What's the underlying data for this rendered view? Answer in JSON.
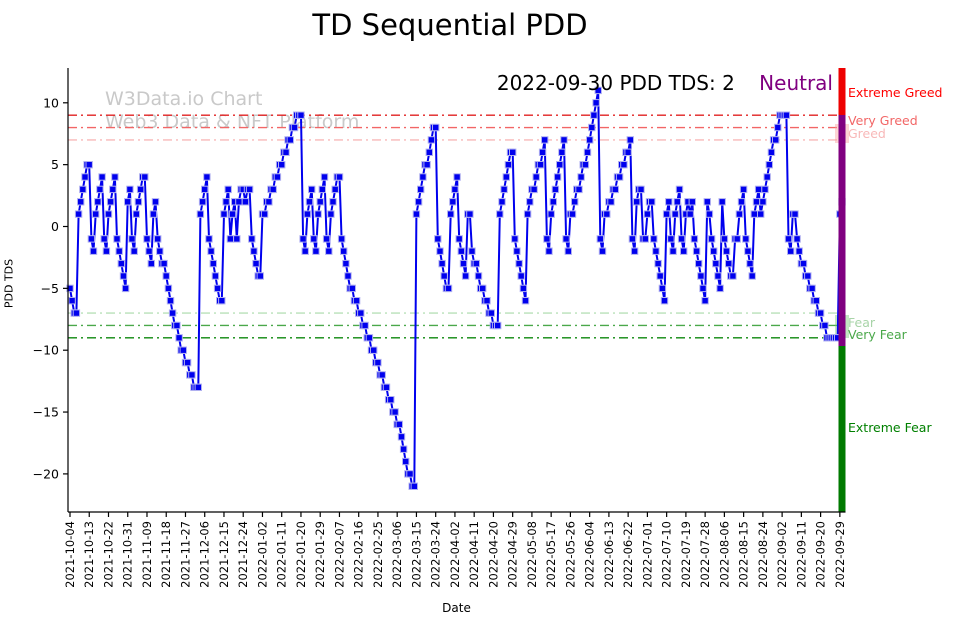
{
  "title": "TD Sequential PDD",
  "watermark": {
    "line1": "W3Data.io Chart",
    "line2": "Web3 Data & NFT Platform",
    "color": "#c9c9c9"
  },
  "annotation": {
    "text": "2022-09-30 PDD TDS: 2",
    "state": "Neutral",
    "state_color": "#800080"
  },
  "axes": {
    "xlabel": "Date",
    "ylabel": "PDD TDS"
  },
  "chart_data": {
    "type": "line",
    "title": "TD Sequential PDD",
    "xlabel": "Date",
    "ylabel": "PDD TDS",
    "series_name": "PDD TDS",
    "frequency": "daily",
    "start_date": "2021-10-04",
    "end_date": "2022-09-30",
    "last_value": 2,
    "ylim": [
      -23.5,
      13
    ],
    "y_ticks": [
      10,
      5,
      0,
      -5,
      -10,
      -15,
      -20
    ],
    "x_tick_every_days": 9,
    "x_tick_labels": [
      "2021-10-04",
      "2021-10-13",
      "2021-10-22",
      "2021-10-31",
      "2021-11-09",
      "2021-11-18",
      "2021-11-27",
      "2021-12-06",
      "2021-12-15",
      "2021-12-24",
      "2022-01-02",
      "2022-01-11",
      "2022-01-20",
      "2022-01-29",
      "2022-02-07",
      "2022-02-16",
      "2022-02-25",
      "2022-03-06",
      "2022-03-15",
      "2022-03-24",
      "2022-04-02",
      "2022-04-11",
      "2022-04-20",
      "2022-04-29",
      "2022-05-08",
      "2022-05-17",
      "2022-05-26",
      "2022-06-04",
      "2022-06-13",
      "2022-06-22",
      "2022-07-01",
      "2022-07-10",
      "2022-07-19",
      "2022-07-28",
      "2022-08-06",
      "2022-08-15",
      "2022-08-24",
      "2022-09-02",
      "2022-09-11",
      "2022-09-20",
      "2022-09-29"
    ],
    "line_color": "#0000ee",
    "marker": "square",
    "marker_edge_color": "#b0b0f0",
    "values": [
      -5,
      -6,
      -7,
      -7,
      1,
      2,
      3,
      4,
      5,
      5,
      -1,
      -2,
      1,
      2,
      3,
      4,
      -1,
      -2,
      1,
      2,
      3,
      4,
      -1,
      -2,
      -3,
      -4,
      -5,
      2,
      3,
      -1,
      -2,
      1,
      2,
      3,
      4,
      4,
      -1,
      -2,
      -3,
      1,
      2,
      -1,
      -2,
      -3,
      -3,
      -4,
      -5,
      -6,
      -7,
      -8,
      -8,
      -9,
      -10,
      -10,
      -11,
      -11,
      -12,
      -12,
      -13,
      -13,
      -13,
      1,
      2,
      3,
      4,
      -1,
      -2,
      -3,
      -4,
      -5,
      -6,
      -6,
      1,
      2,
      3,
      -1,
      1,
      2,
      -1,
      2,
      3,
      3,
      2,
      3,
      3,
      -1,
      -2,
      -3,
      -4,
      -4,
      1,
      1,
      2,
      2,
      3,
      3,
      4,
      4,
      5,
      5,
      6,
      6,
      7,
      7,
      8,
      8,
      9,
      9,
      9,
      -1,
      -2,
      1,
      2,
      3,
      -1,
      -2,
      1,
      2,
      3,
      4,
      -1,
      -2,
      1,
      2,
      3,
      4,
      4,
      -1,
      -2,
      -3,
      -4,
      -5,
      -5,
      -6,
      -6,
      -7,
      -7,
      -8,
      -8,
      -9,
      -9,
      -10,
      -10,
      -11,
      -11,
      -12,
      -12,
      -13,
      -13,
      -14,
      -14,
      -15,
      -15,
      -16,
      -16,
      -17,
      -18,
      -19,
      -20,
      -20,
      -21,
      -21,
      1,
      2,
      3,
      4,
      5,
      5,
      6,
      7,
      8,
      8,
      -1,
      -2,
      -3,
      -4,
      -5,
      -5,
      1,
      2,
      3,
      4,
      -1,
      -2,
      -3,
      -4,
      1,
      1,
      -2,
      -3,
      -3,
      -4,
      -5,
      -5,
      -6,
      -6,
      -7,
      -7,
      -8,
      -8,
      -8,
      1,
      2,
      3,
      4,
      5,
      6,
      6,
      -1,
      -2,
      -3,
      -4,
      -5,
      -6,
      1,
      2,
      3,
      3,
      4,
      5,
      5,
      6,
      7,
      -1,
      -2,
      1,
      2,
      3,
      4,
      5,
      6,
      7,
      -1,
      -2,
      1,
      1,
      2,
      3,
      3,
      4,
      5,
      5,
      6,
      7,
      8,
      9,
      10,
      11,
      -1,
      -2,
      1,
      1,
      2,
      2,
      3,
      3,
      4,
      4,
      5,
      5,
      6,
      6,
      7,
      -1,
      -2,
      2,
      3,
      3,
      -1,
      -1,
      1,
      2,
      2,
      -1,
      -2,
      -3,
      -4,
      -5,
      -6,
      1,
      2,
      -1,
      -2,
      1,
      2,
      3,
      -1,
      -2,
      1,
      2,
      1,
      2,
      -1,
      -2,
      -3,
      -4,
      -5,
      -6,
      2,
      1,
      -1,
      -2,
      -3,
      -4,
      -5,
      2,
      -1,
      -2,
      -3,
      -4,
      -4,
      -1,
      -1,
      1,
      2,
      3,
      -1,
      -2,
      -3,
      -4,
      1,
      2,
      3,
      1,
      2,
      3,
      4,
      5,
      6,
      7,
      7,
      8,
      9,
      9,
      9,
      9,
      -1,
      -2,
      1,
      1,
      -1,
      -2,
      -3,
      -3,
      -4,
      -4,
      -5,
      -5,
      -6,
      -6,
      -7,
      -7,
      -8,
      -8,
      -9,
      -9,
      -9,
      -9,
      -9,
      -9,
      1,
      2
    ],
    "threshold_lines": [
      {
        "y": 9,
        "label": "",
        "color": "#e02020"
      },
      {
        "y": 8,
        "label": "",
        "color": "#f26666"
      },
      {
        "y": 7,
        "label": "",
        "color": "#f8b8b8"
      },
      {
        "y": -7,
        "label": "",
        "color": "#b8e0b8"
      },
      {
        "y": -8,
        "label": "",
        "color": "#4aa84a"
      },
      {
        "y": -9,
        "label": "",
        "color": "#0c870c"
      }
    ],
    "zone_labels": [
      {
        "text": "Extreme Greed",
        "color": "#ff0000",
        "y": 85
      },
      {
        "text": "Very Greed",
        "color": "#f26666",
        "y": 113
      },
      {
        "text": "Greed",
        "color": "#f8b8b8",
        "y": 126
      },
      {
        "text": "Fear",
        "color": "#a8d4a8",
        "y": 315
      },
      {
        "text": "Very Fear",
        "color": "#4aa84a",
        "y": 327
      },
      {
        "text": "Extreme Fear",
        "color": "#008000",
        "y": 420
      }
    ],
    "zone_bar": {
      "x": 838.5,
      "width": 7,
      "segments": [
        {
          "name": "greed-zone",
          "color": "#ee0000",
          "y_top": 68,
          "y_bottom": 115
        },
        {
          "name": "neutral-zone",
          "color": "#800080",
          "y_top": 115,
          "y_bottom": 346
        },
        {
          "name": "fear-zone",
          "color": "#007a00",
          "y_top": 346,
          "y_bottom": 512
        }
      ],
      "highlights": [
        {
          "name": "greed-touch-highlight",
          "color": "rgba(250,160,160,0.45)",
          "x": 835,
          "y": 124,
          "w": 14,
          "h": 19
        },
        {
          "name": "fear-touch-highlight",
          "color": "rgba(120,200,120,0.45)",
          "x": 835,
          "y": 315,
          "w": 14,
          "h": 23
        }
      ]
    },
    "legend": "none",
    "grid": false
  }
}
